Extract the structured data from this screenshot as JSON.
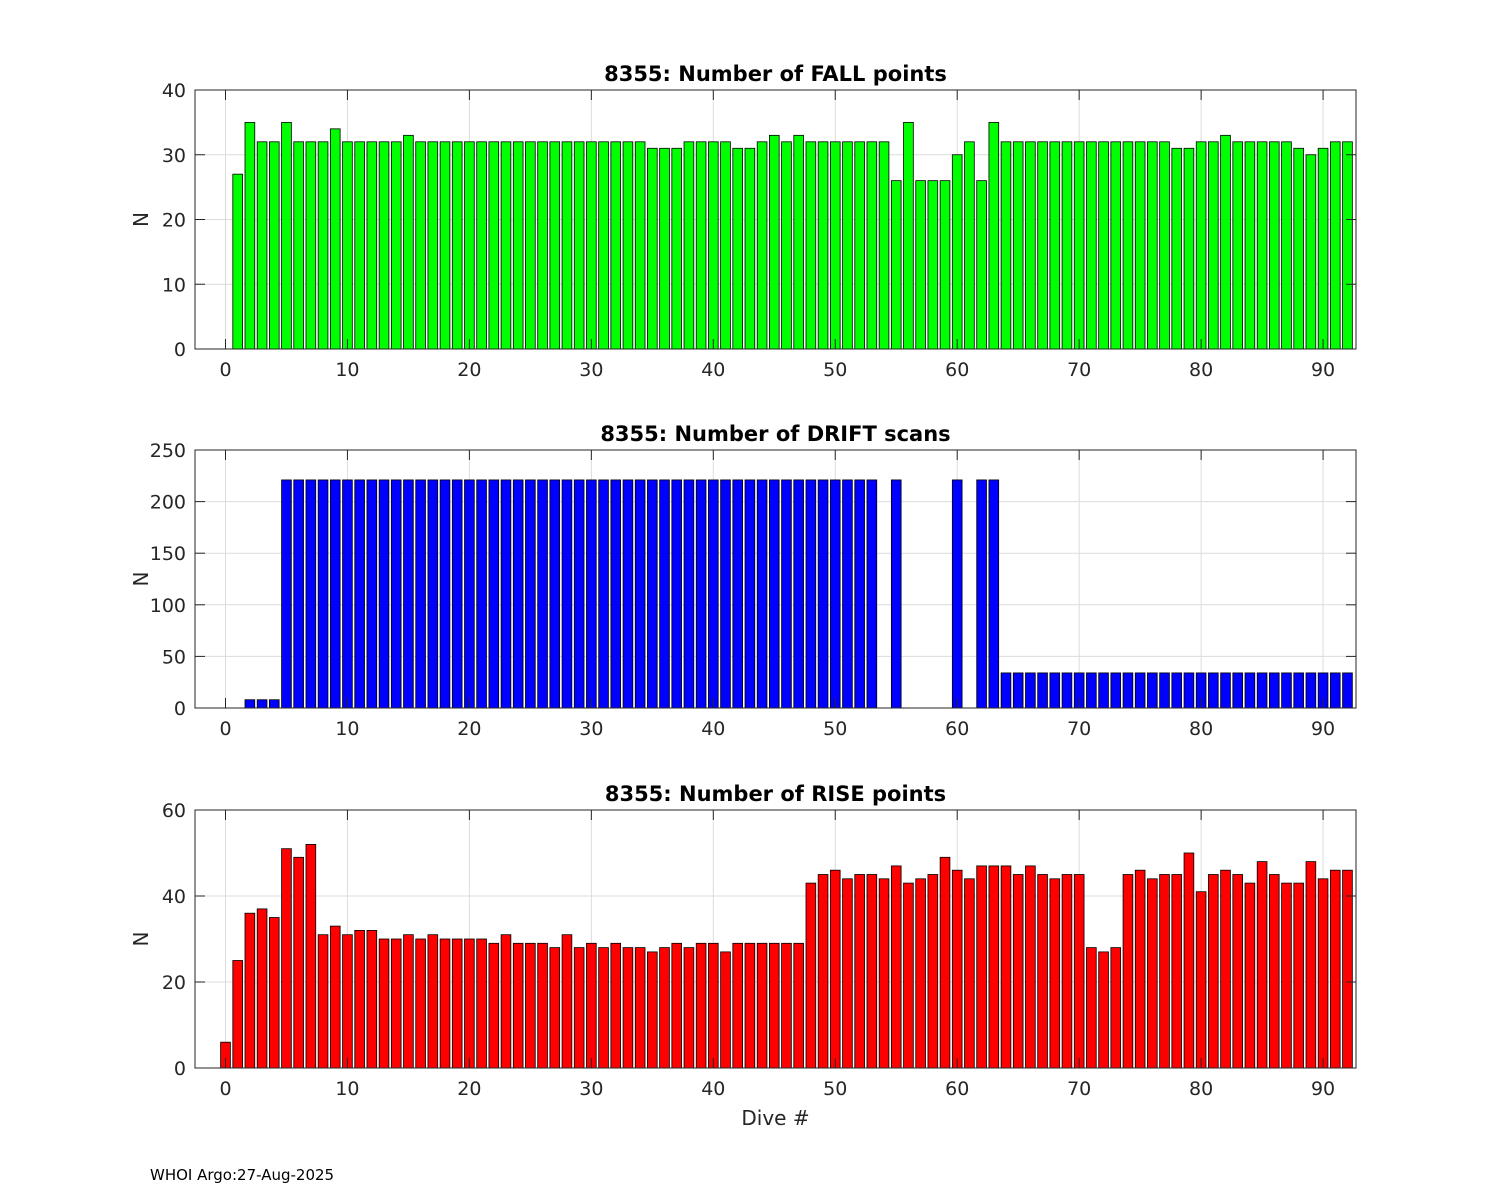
{
  "footer": "WHOI Argo:27-Aug-2025",
  "chart_data": [
    {
      "type": "bar",
      "title": "8355: Number of FALL points",
      "xlabel": "",
      "ylabel": "N",
      "color": "#00ff00",
      "xlim": [
        -2.5,
        92.7
      ],
      "ylim": [
        0,
        40
      ],
      "yticks": [
        0,
        10,
        20,
        30,
        40
      ],
      "xticks": [
        0,
        10,
        20,
        30,
        40,
        50,
        60,
        70,
        80,
        90
      ],
      "grid": true,
      "x": [
        0,
        1,
        2,
        3,
        4,
        5,
        6,
        7,
        8,
        9,
        10,
        11,
        12,
        13,
        14,
        15,
        16,
        17,
        18,
        19,
        20,
        21,
        22,
        23,
        24,
        25,
        26,
        27,
        28,
        29,
        30,
        31,
        32,
        33,
        34,
        35,
        36,
        37,
        38,
        39,
        40,
        41,
        42,
        43,
        44,
        45,
        46,
        47,
        48,
        49,
        50,
        51,
        52,
        53,
        54,
        55,
        56,
        57,
        58,
        59,
        60,
        61,
        62,
        63,
        64,
        65,
        66,
        67,
        68,
        69,
        70,
        71,
        72,
        73,
        74,
        75,
        76,
        77,
        78,
        79,
        80,
        81,
        82,
        83,
        84,
        85,
        86,
        87,
        88,
        89,
        90,
        91,
        92
      ],
      "values": [
        0,
        27,
        35,
        32,
        32,
        35,
        32,
        32,
        32,
        34,
        32,
        32,
        32,
        32,
        32,
        33,
        32,
        32,
        32,
        32,
        32,
        32,
        32,
        32,
        32,
        32,
        32,
        32,
        32,
        32,
        32,
        32,
        32,
        32,
        32,
        31,
        31,
        31,
        32,
        32,
        32,
        32,
        31,
        31,
        32,
        33,
        32,
        33,
        32,
        32,
        32,
        32,
        32,
        32,
        32,
        26,
        35,
        26,
        26,
        26,
        30,
        32,
        26,
        35,
        32,
        32,
        32,
        32,
        32,
        32,
        32,
        32,
        32,
        32,
        32,
        32,
        32,
        32,
        31,
        31,
        32,
        32,
        33,
        32,
        32,
        32,
        32,
        32,
        31,
        30,
        31,
        32,
        32
      ]
    },
    {
      "type": "bar",
      "title": "8355: Number of DRIFT scans",
      "xlabel": "",
      "ylabel": "N",
      "color": "#0000ff",
      "xlim": [
        -2.5,
        92.7
      ],
      "ylim": [
        0,
        250
      ],
      "yticks": [
        0,
        50,
        100,
        150,
        200,
        250
      ],
      "xticks": [
        0,
        10,
        20,
        30,
        40,
        50,
        60,
        70,
        80,
        90
      ],
      "grid": true,
      "x": [
        -1,
        0,
        1,
        2,
        3,
        4,
        5,
        6,
        7,
        8,
        9,
        10,
        11,
        12,
        13,
        14,
        15,
        16,
        17,
        18,
        19,
        20,
        21,
        22,
        23,
        24,
        25,
        26,
        27,
        28,
        29,
        30,
        31,
        32,
        33,
        34,
        35,
        36,
        37,
        38,
        39,
        40,
        41,
        42,
        43,
        44,
        45,
        46,
        47,
        48,
        49,
        50,
        51,
        52,
        53,
        54,
        55,
        56,
        57,
        58,
        59,
        60,
        61,
        62,
        63,
        64,
        65,
        66,
        67,
        68,
        69,
        70,
        71,
        72,
        73,
        74,
        75,
        76,
        77,
        78,
        79,
        80,
        81,
        82,
        83,
        84,
        85,
        86,
        87,
        88,
        89,
        90,
        91,
        92
      ],
      "values": [
        0,
        0,
        0,
        8,
        8,
        8,
        221,
        221,
        221,
        221,
        221,
        221,
        221,
        221,
        221,
        221,
        221,
        221,
        221,
        221,
        221,
        221,
        221,
        221,
        221,
        221,
        221,
        221,
        221,
        221,
        221,
        221,
        221,
        221,
        221,
        221,
        221,
        221,
        221,
        221,
        221,
        221,
        221,
        221,
        221,
        221,
        221,
        221,
        221,
        221,
        221,
        221,
        221,
        221,
        221,
        0,
        221,
        0,
        0,
        0,
        0,
        221,
        0,
        221,
        221,
        34,
        34,
        34,
        34,
        34,
        34,
        34,
        34,
        34,
        34,
        34,
        34,
        34,
        34,
        34,
        34,
        34,
        34,
        34,
        34,
        34,
        34,
        34,
        34,
        34,
        34,
        34,
        34,
        34
      ]
    },
    {
      "type": "bar",
      "title": "8355: Number of RISE points",
      "xlabel": "Dive #",
      "ylabel": "N",
      "color": "#ff0000",
      "xlim": [
        -2.5,
        92.7
      ],
      "ylim": [
        0,
        60
      ],
      "yticks": [
        0,
        20,
        40,
        60
      ],
      "xticks": [
        0,
        10,
        20,
        30,
        40,
        50,
        60,
        70,
        80,
        90
      ],
      "grid": true,
      "x": [
        0,
        1,
        2,
        3,
        4,
        5,
        6,
        7,
        8,
        9,
        10,
        11,
        12,
        13,
        14,
        15,
        16,
        17,
        18,
        19,
        20,
        21,
        22,
        23,
        24,
        25,
        26,
        27,
        28,
        29,
        30,
        31,
        32,
        33,
        34,
        35,
        36,
        37,
        38,
        39,
        40,
        41,
        42,
        43,
        44,
        45,
        46,
        47,
        48,
        49,
        50,
        51,
        52,
        53,
        54,
        55,
        56,
        57,
        58,
        59,
        60,
        61,
        62,
        63,
        64,
        65,
        66,
        67,
        68,
        69,
        70,
        71,
        72,
        73,
        74,
        75,
        76,
        77,
        78,
        79,
        80,
        81,
        82,
        83,
        84,
        85,
        86,
        87,
        88,
        89,
        90,
        91,
        92
      ],
      "values": [
        6,
        25,
        36,
        37,
        35,
        51,
        49,
        52,
        31,
        33,
        31,
        32,
        32,
        30,
        30,
        31,
        30,
        31,
        30,
        30,
        30,
        30,
        29,
        31,
        29,
        29,
        29,
        28,
        31,
        28,
        29,
        28,
        29,
        28,
        28,
        27,
        28,
        29,
        28,
        29,
        29,
        27,
        29,
        29,
        29,
        29,
        29,
        29,
        43,
        45,
        46,
        44,
        45,
        45,
        44,
        47,
        43,
        44,
        45,
        49,
        46,
        44,
        47,
        47,
        47,
        45,
        47,
        45,
        44,
        45,
        45,
        28,
        27,
        28,
        45,
        46,
        44,
        45,
        45,
        50,
        41,
        45,
        46,
        45,
        43,
        48,
        45,
        43,
        43,
        48,
        44,
        46,
        46
      ]
    }
  ]
}
